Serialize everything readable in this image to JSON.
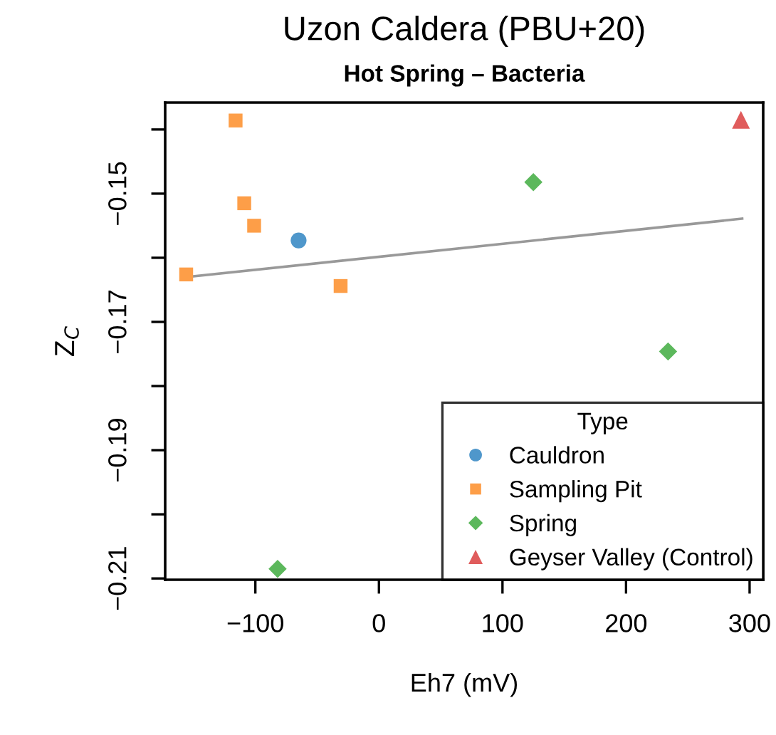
{
  "chart_data": {
    "type": "scatter",
    "title": "Uzon Caldera (PBU+20)",
    "subtitle": "Hot Spring – Bacteria",
    "xlabel": "Eh7 (mV)",
    "ylabel": "Z$_{C}$",
    "legend_title": "Type",
    "legend": "bottom right",
    "grid": false,
    "xlim": [
      -173,
      311
    ],
    "ylim": [
      -0.2102,
      -0.1358
    ],
    "xticks": [
      -100,
      0,
      100,
      200,
      300
    ],
    "yticks": [
      {
        "value": -0.14,
        "label": null
      },
      -0.15,
      {
        "value": -0.16,
        "label": null
      },
      -0.17,
      {
        "value": -0.18,
        "label": null
      },
      -0.19,
      {
        "value": -0.2,
        "label": null
      },
      -0.21
    ],
    "series": [
      {
        "name": "Cauldron",
        "color": "#4f97cb",
        "marker": "circle",
        "x": [
          -65
        ],
        "values": [
          -0.1573
        ]
      },
      {
        "name": "Sampling Pit",
        "color": "#fd9e48",
        "marker": "square",
        "x": [
          -116,
          -109,
          -101,
          -156,
          -31
        ],
        "values": [
          -0.1386,
          -0.1515,
          -0.155,
          -0.1626,
          -0.1644
        ]
      },
      {
        "name": "Spring",
        "color": "#5cb85c",
        "marker": "diamond",
        "x": [
          125,
          234,
          -82
        ],
        "values": [
          -0.1482,
          -0.1746,
          -0.2085
        ]
      },
      {
        "name": "Geyser Valley (Control)",
        "color": "#e05c5c",
        "marker": "triangle",
        "x": [
          293
        ],
        "values": [
          -0.1385
        ]
      },
      {
        "type": "line",
        "color": "#999999",
        "marker": "none",
        "x": [
          -156,
          294
        ],
        "values": [
          -0.163,
          -0.1539
        ]
      }
    ]
  }
}
